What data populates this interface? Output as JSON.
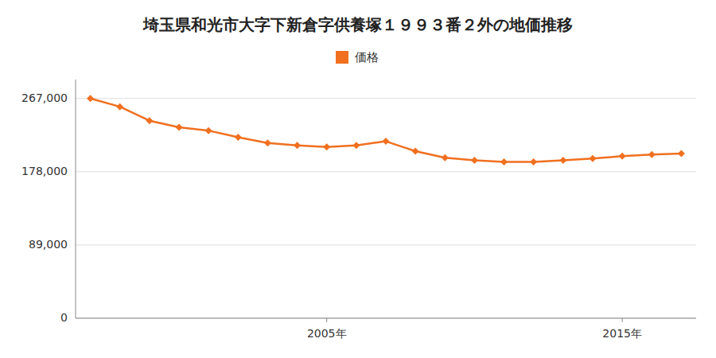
{
  "chart_data": {
    "type": "line",
    "title": "埼玉県和光市大字下新倉字供養塚１９９３番２外の地価推移",
    "x": [
      1997,
      1998,
      1999,
      2000,
      2001,
      2002,
      2003,
      2004,
      2005,
      2006,
      2007,
      2008,
      2009,
      2010,
      2011,
      2012,
      2013,
      2014,
      2015,
      2016,
      2017
    ],
    "series": [
      {
        "name": "価格",
        "color": "#f07020",
        "marker": "diamond",
        "values": [
          267000,
          257000,
          240000,
          232000,
          228000,
          220000,
          213000,
          210000,
          208000,
          210000,
          215000,
          203000,
          195000,
          192000,
          190000,
          190000,
          192000,
          194000,
          197000,
          199000,
          200000
        ]
      }
    ],
    "xlim": [
      1996.5,
      2017.5
    ],
    "xticks": [
      {
        "value": 2005,
        "label": "2005年"
      },
      {
        "value": 2015,
        "label": "2015年"
      }
    ],
    "ylim": [
      0,
      290000
    ],
    "yticks": [
      0,
      {
        "value": 89000,
        "label": "89,000"
      },
      {
        "value": 178000,
        "label": "178,000"
      },
      {
        "value": 267000,
        "label": "267,000"
      }
    ],
    "grid": true,
    "legend": "top"
  }
}
